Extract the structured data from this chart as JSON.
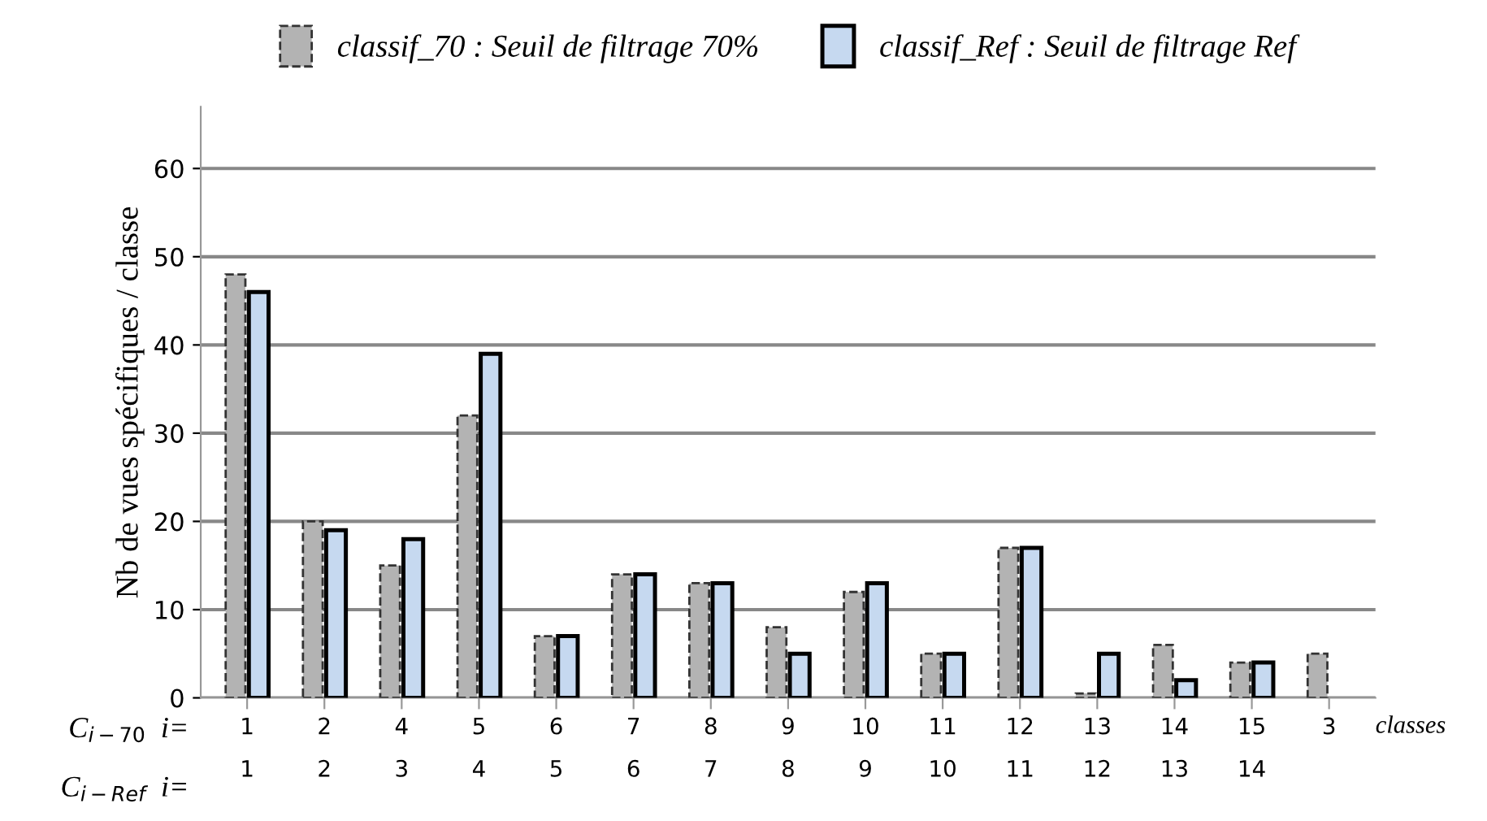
{
  "chart_data": {
    "type": "bar",
    "ylabel": "Nb de vues spécifiques / classe",
    "xlabel": "classes",
    "categories": [
      "1\n1",
      "2\n2",
      "4\n3",
      "5\n4",
      "6\n5",
      "7\n6",
      "8\n7",
      "9\n8",
      "10\n9",
      "11\n10",
      "12\n11",
      "13\n12",
      "14\n13",
      "15\n14",
      "3"
    ],
    "series": [
      {
        "name": "classif_70 : Seuil de filtrage 70%",
        "color": "#b3b3b3",
        "values": [
          48,
          20,
          15,
          32,
          7,
          14,
          13,
          8,
          12,
          5,
          17,
          0.5,
          6,
          4,
          5
        ]
      },
      {
        "name": "classif_Ref : Seuil de filtrage Ref",
        "color": "#c6d9f0",
        "values": [
          46,
          19,
          18,
          39,
          7,
          14,
          13,
          5,
          13,
          5,
          17,
          5,
          2,
          4,
          null
        ]
      }
    ],
    "ylim": [
      0,
      67
    ],
    "yticks": [
      0,
      10,
      20,
      30,
      40,
      50,
      60
    ],
    "grid": "y",
    "legend": "top",
    "annotations": [
      "C$_{i−70}$  i=",
      "C$_{i−Ref}$  i="
    ]
  }
}
